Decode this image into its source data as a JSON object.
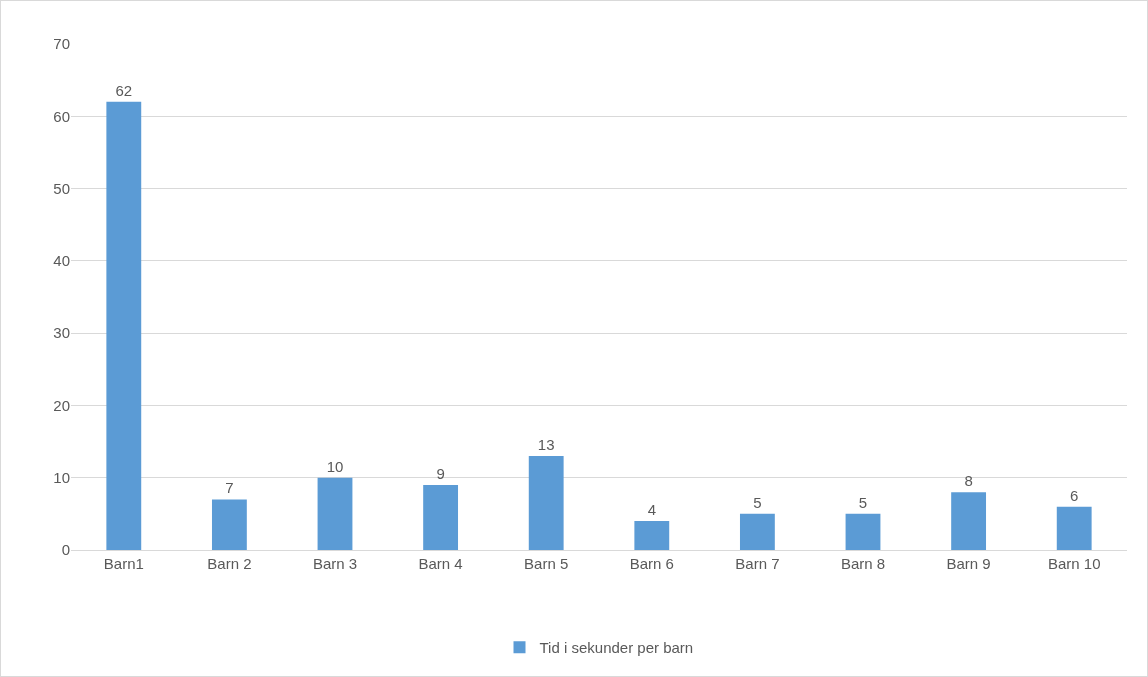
{
  "chart_data": {
    "type": "bar",
    "categories": [
      "Barn1",
      "Barn 2",
      "Barn 3",
      "Barn 4",
      "Barn 5",
      "Barn 6",
      "Barn 7",
      "Barn 8",
      "Barn 9",
      "Barn 10"
    ],
    "series": [
      {
        "name": "Tid i sekunder per barn",
        "color": "#5b9bd5",
        "values": [
          62,
          7,
          10,
          9,
          13,
          4,
          5,
          5,
          8,
          6
        ]
      }
    ],
    "ylim": [
      0,
      70
    ],
    "yticks": [
      0,
      10,
      20,
      30,
      40,
      50,
      60,
      70
    ],
    "grid": "y",
    "legend": "bottom",
    "data_labels": true
  }
}
